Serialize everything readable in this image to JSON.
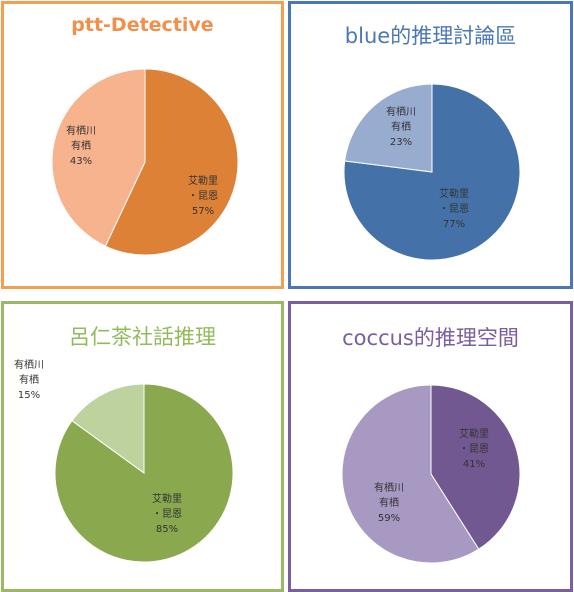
{
  "colors": {
    "p0": {
      "border": "#f0a050",
      "title": "#f0904a",
      "slices": [
        "#dd8137",
        "#f7b38d"
      ]
    },
    "p1": {
      "border": "#4a78b6",
      "title": "#4a78b6",
      "slices": [
        "#4472a8",
        "#98acd0"
      ]
    },
    "p2": {
      "border": "#9ab866",
      "title": "#92bb5c",
      "slices": [
        "#8aa84e",
        "#bed29e"
      ]
    },
    "p3": {
      "border": "#7a5ea2",
      "title": "#7a5ea2",
      "slices": [
        "#725890",
        "#a899c2"
      ]
    }
  },
  "chart_data": [
    {
      "type": "pie",
      "title": "ptt-Detective",
      "slices": [
        {
          "label_lines": [
            "艾勒里",
            "・昆恩"
          ],
          "value": 57,
          "pct": "57%"
        },
        {
          "label_lines": [
            "有栖川",
            "有栖"
          ],
          "value": 43,
          "pct": "43%"
        }
      ]
    },
    {
      "type": "pie",
      "title": "blue的推理討論區",
      "slices": [
        {
          "label_lines": [
            "艾勒里",
            "・昆恩"
          ],
          "value": 77,
          "pct": "77%"
        },
        {
          "label_lines": [
            "有栖川",
            "有栖"
          ],
          "value": 23,
          "pct": "23%"
        }
      ]
    },
    {
      "type": "pie",
      "title": "呂仁茶社話推理",
      "slices": [
        {
          "label_lines": [
            "艾勒里",
            "・昆恩"
          ],
          "value": 85,
          "pct": "85%"
        },
        {
          "label_lines": [
            "有栖川",
            "有栖"
          ],
          "value": 15,
          "pct": "15%"
        }
      ]
    },
    {
      "type": "pie",
      "title": "coccus的推理空間",
      "slices": [
        {
          "label_lines": [
            "艾勒里",
            "・昆恩"
          ],
          "value": 41,
          "pct": "41%"
        },
        {
          "label_lines": [
            "有栖川",
            "有栖"
          ],
          "value": 59,
          "pct": "59%"
        }
      ]
    }
  ]
}
